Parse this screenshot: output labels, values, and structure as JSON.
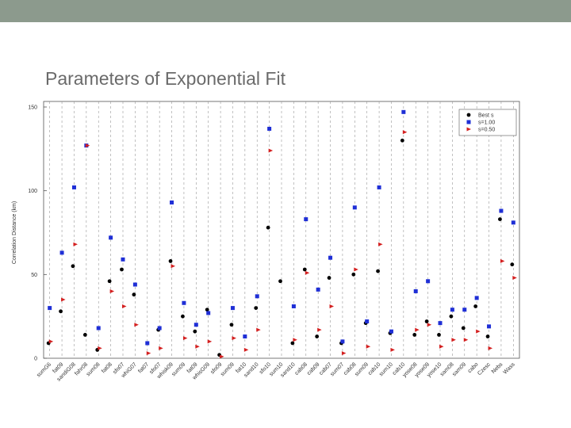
{
  "chart_data": {
    "type": "scatter",
    "title": "Parameters of Exponential Fit",
    "y_label": "Correlation Distance (km)",
    "categories": [
      "sumG6",
      "fat09",
      "sandiG08",
      "fahr08",
      "sum08",
      "fat08",
      "sfo07",
      "whiG07",
      "fat07",
      "sfo07",
      "whisk09",
      "sum09",
      "fat09",
      "whisG09",
      "sfo09",
      "sum09",
      "fat10",
      "sand10",
      "sfo10",
      "sum10",
      "sand10",
      "cab08",
      "cab09",
      "cab07",
      "sum07",
      "cab08",
      "sum09",
      "cab10",
      "sum10",
      "cab10",
      "yose08",
      "yose09",
      "yose10",
      "sam08",
      "sam09",
      "cabo",
      "Czesc",
      "Nebs",
      "Wass"
    ],
    "series": [
      {
        "name": "Best s",
        "color": "#000000",
        "marker": "circle",
        "values": [
          9,
          28,
          55,
          14,
          5,
          46,
          53,
          38,
          null,
          17,
          58,
          25,
          16,
          29,
          2,
          20,
          null,
          30,
          78,
          46,
          9,
          53,
          13,
          48,
          9,
          50,
          21,
          52,
          15,
          130,
          14,
          22,
          14,
          25,
          18,
          31,
          13,
          83,
          56
        ]
      },
      {
        "name": "s=1.00",
        "color": "#1f2fd6",
        "marker": "square",
        "values": [
          30,
          63,
          102,
          127,
          18,
          72,
          59,
          44,
          9,
          18,
          93,
          33,
          20,
          27,
          null,
          30,
          13,
          37,
          137,
          null,
          31,
          83,
          41,
          60,
          10,
          90,
          22,
          102,
          16,
          147,
          40,
          46,
          21,
          29,
          29,
          36,
          19,
          88,
          81
        ]
      },
      {
        "name": "s=0.50",
        "color": "#d42020",
        "marker": "triangle",
        "values": [
          10,
          35,
          68,
          127,
          6,
          40,
          31,
          20,
          3,
          6,
          55,
          12,
          7,
          10,
          1,
          12,
          5,
          17,
          124,
          null,
          11,
          51,
          17,
          31,
          3,
          53,
          7,
          68,
          5,
          135,
          17,
          20,
          7,
          11,
          11,
          16,
          6,
          58,
          48
        ]
      }
    ],
    "ylim": [
      0,
      150
    ],
    "yticks": [
      0,
      50,
      100,
      150
    ],
    "grid": true,
    "legend": "upper right"
  }
}
